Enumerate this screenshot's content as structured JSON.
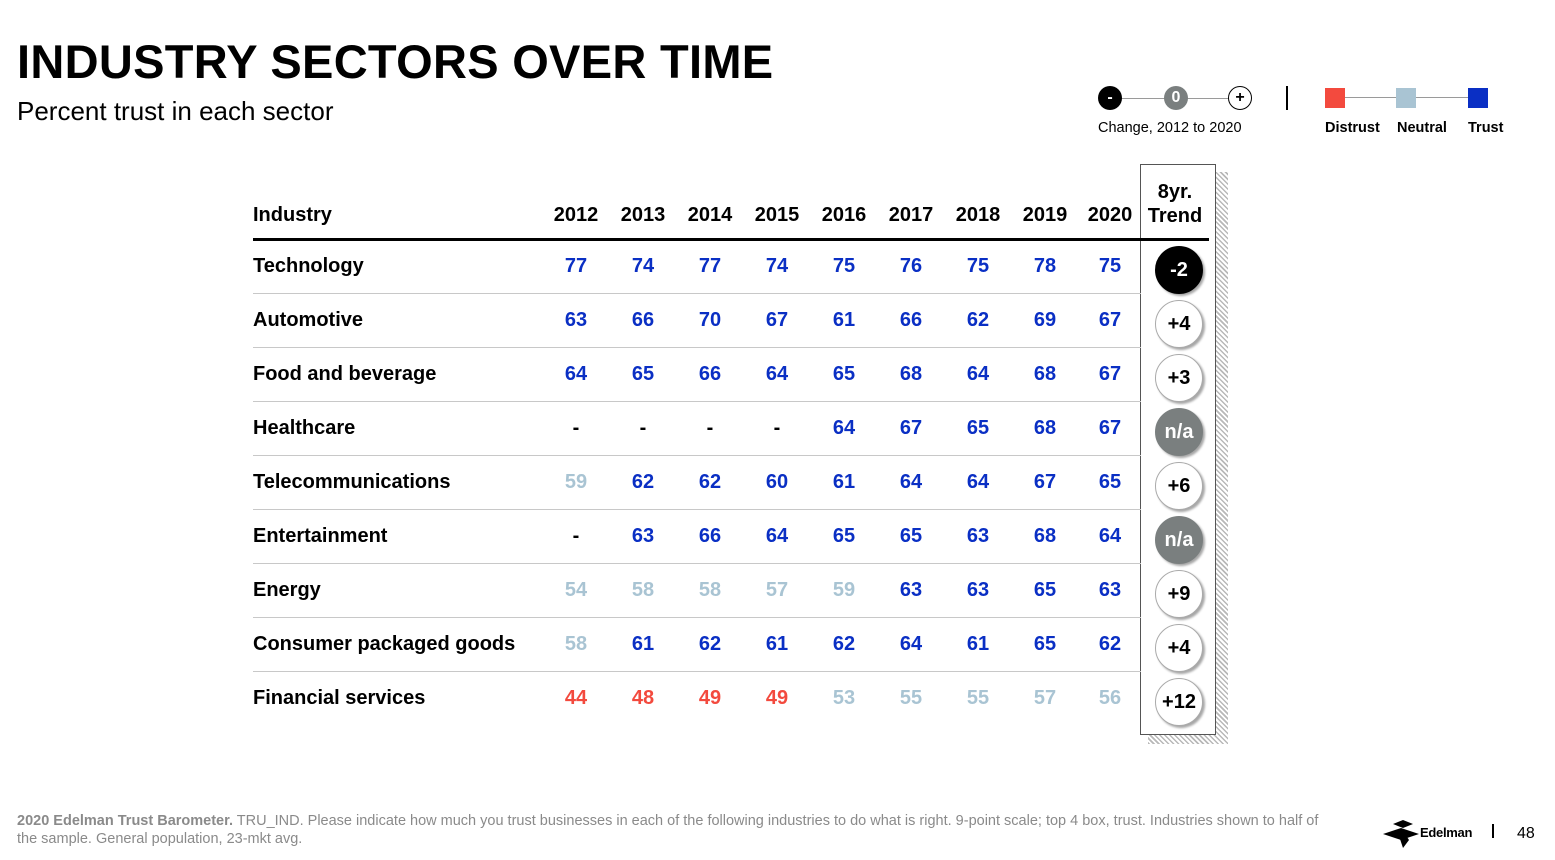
{
  "title": "INDUSTRY SECTORS OVER TIME",
  "subtitle": "Percent trust in each sector",
  "legend": {
    "change": {
      "neg": "-",
      "zero": "0",
      "pos": "+",
      "label": "Change, 2012 to 2020"
    },
    "categories": [
      {
        "label": "Distrust",
        "color": "#f34a3e"
      },
      {
        "label": "Neutral",
        "color": "#a9c4d3"
      },
      {
        "label": "Trust",
        "color": "#0a2fc4"
      }
    ]
  },
  "table": {
    "industry_header": "Industry",
    "trend_header_line1": "8yr.",
    "trend_header_line2": "Trend"
  },
  "chart_data": {
    "type": "table",
    "title": "INDUSTRY SECTORS OVER TIME",
    "subtitle": "Percent trust in each sector",
    "years": [
      "2012",
      "2013",
      "2014",
      "2015",
      "2016",
      "2017",
      "2018",
      "2019",
      "2020"
    ],
    "colors": {
      "distrust": "#f34a3e",
      "neutral": "#a9c4d3",
      "trust": "#0a2fc4",
      "na": "#000000"
    },
    "rows": [
      {
        "industry": "Technology",
        "values": [
          77,
          74,
          77,
          74,
          75,
          76,
          75,
          78,
          75
        ],
        "classes": [
          "trust",
          "trust",
          "trust",
          "trust",
          "trust",
          "trust",
          "trust",
          "trust",
          "trust"
        ],
        "trend": "-2",
        "trend_kind": "neg"
      },
      {
        "industry": "Automotive",
        "values": [
          63,
          66,
          70,
          67,
          61,
          66,
          62,
          69,
          67
        ],
        "classes": [
          "trust",
          "trust",
          "trust",
          "trust",
          "trust",
          "trust",
          "trust",
          "trust",
          "trust"
        ],
        "trend": "+4",
        "trend_kind": "pos"
      },
      {
        "industry": "Food and beverage",
        "values": [
          64,
          65,
          66,
          64,
          65,
          68,
          64,
          68,
          67
        ],
        "classes": [
          "trust",
          "trust",
          "trust",
          "trust",
          "trust",
          "trust",
          "trust",
          "trust",
          "trust"
        ],
        "trend": "+3",
        "trend_kind": "pos"
      },
      {
        "industry": "Healthcare",
        "values": [
          "-",
          "-",
          "-",
          "-",
          64,
          67,
          65,
          68,
          67
        ],
        "classes": [
          "na",
          "na",
          "na",
          "na",
          "trust",
          "trust",
          "trust",
          "trust",
          "trust"
        ],
        "trend": "n/a",
        "trend_kind": "na"
      },
      {
        "industry": "Telecommunications",
        "values": [
          59,
          62,
          62,
          60,
          61,
          64,
          64,
          67,
          65
        ],
        "classes": [
          "neutral",
          "trust",
          "trust",
          "trust",
          "trust",
          "trust",
          "trust",
          "trust",
          "trust"
        ],
        "trend": "+6",
        "trend_kind": "pos"
      },
      {
        "industry": "Entertainment",
        "values": [
          "-",
          63,
          66,
          64,
          65,
          65,
          63,
          68,
          64
        ],
        "classes": [
          "na",
          "trust",
          "trust",
          "trust",
          "trust",
          "trust",
          "trust",
          "trust",
          "trust"
        ],
        "trend": "n/a",
        "trend_kind": "na"
      },
      {
        "industry": "Energy",
        "values": [
          54,
          58,
          58,
          57,
          59,
          63,
          63,
          65,
          63
        ],
        "classes": [
          "neutral",
          "neutral",
          "neutral",
          "neutral",
          "neutral",
          "trust",
          "trust",
          "trust",
          "trust"
        ],
        "trend": "+9",
        "trend_kind": "pos"
      },
      {
        "industry": "Consumer packaged goods",
        "values": [
          58,
          61,
          62,
          61,
          62,
          64,
          61,
          65,
          62
        ],
        "classes": [
          "neutral",
          "trust",
          "trust",
          "trust",
          "trust",
          "trust",
          "trust",
          "trust",
          "trust"
        ],
        "trend": "+4",
        "trend_kind": "pos"
      },
      {
        "industry": "Financial services",
        "values": [
          44,
          48,
          49,
          49,
          53,
          55,
          55,
          57,
          56
        ],
        "classes": [
          "distrust",
          "distrust",
          "distrust",
          "distrust",
          "neutral",
          "neutral",
          "neutral",
          "neutral",
          "neutral"
        ],
        "trend": "+12",
        "trend_kind": "pos"
      }
    ]
  },
  "footer": {
    "source_bold": "2020 Edelman Trust Barometer.",
    "source_text": " TRU_IND. Please indicate how much you trust businesses in each of the following industries to do what is right. 9-point scale; top 4 box, trust. Industries shown to half of the sample. General population, 23-mkt avg."
  },
  "brand": "Edelman",
  "page_number": "48"
}
